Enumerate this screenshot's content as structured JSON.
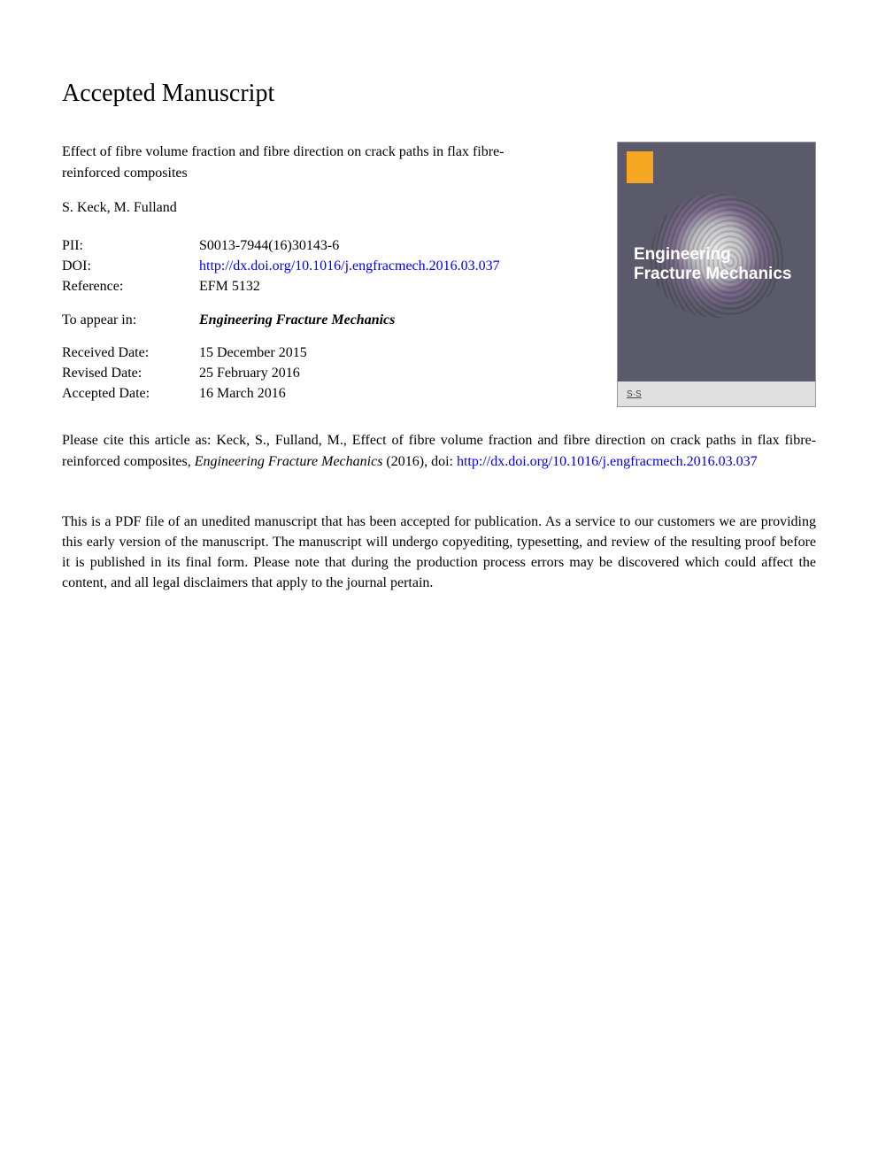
{
  "heading": "Accepted Manuscript",
  "article_title": "Effect of fibre volume fraction and fibre direction on crack paths in flax fibre-reinforced composites",
  "authors": "S. Keck, M. Fulland",
  "metadata": {
    "pii_label": "PII:",
    "pii_value": "S0013-7944(16)30143-6",
    "doi_label": "DOI:",
    "doi_value": "http://dx.doi.org/10.1016/j.engfracmech.2016.03.037",
    "reference_label": "Reference:",
    "reference_value": "EFM 5132",
    "appear_label": "To appear in:",
    "appear_value": "Engineering Fracture Mechanics",
    "received_label": "Received Date:",
    "received_value": "15 December 2015",
    "revised_label": "Revised Date:",
    "revised_value": "25 February 2016",
    "accepted_label": "Accepted Date:",
    "accepted_value": "16 March 2016"
  },
  "cover": {
    "journal_title_line1": "Engineering",
    "journal_title_line2": "Fracture Mechanics",
    "issn": "",
    "footer_logo": "S·S",
    "footer_text": ""
  },
  "citation": {
    "prefix": "Please cite this article as: Keck, S., Fulland, M., Effect of fibre volume fraction and fibre direction on crack paths in flax fibre-reinforced composites, ",
    "journal": "Engineering Fracture Mechanics",
    "year_doi_prefix": " (2016), doi: ",
    "doi_link": "http://dx.doi.org/10.1016/j.engfracmech.2016.03.037"
  },
  "disclaimer": "This is a PDF file of an unedited manuscript that has been accepted for publication. As a service to our customers we are providing this early version of the manuscript. The manuscript will undergo copyediting, typesetting, and review of the resulting proof before it is published in its final form. Please note that during the production process errors may be discovered which could affect the content, and all legal disclaimers that apply to the journal pertain.",
  "colors": {
    "background": "#ffffff",
    "text": "#000000",
    "link": "#0000ee",
    "cover_bg": "#5a5a6a",
    "cover_text": "#ffffff",
    "cover_footer_bg": "#e0e0e0"
  },
  "typography": {
    "body_font": "Times New Roman",
    "heading_fontsize": 28,
    "body_fontsize": 16,
    "cover_title_fontsize": 19
  }
}
